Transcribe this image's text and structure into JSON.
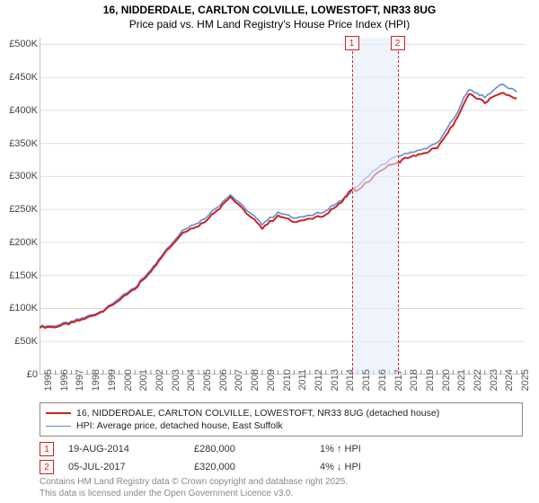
{
  "title_line1": "16, NIDDERDALE, CARLTON COLVILLE, LOWESTOFT, NR33 8UG",
  "title_line2": "Price paid vs. HM Land Registry's House Price Index (HPI)",
  "chart": {
    "type": "line",
    "background_color": "#ffffff",
    "grid_color": "#dddddd",
    "shade_color": "#e5ecfa",
    "axis_color": "#888888",
    "tick_color": "#888888",
    "x_min": 1995,
    "x_max": 2025.5,
    "y_min": 0,
    "y_max": 510000,
    "y_ticks": [
      0,
      50000,
      100000,
      150000,
      200000,
      250000,
      300000,
      350000,
      400000,
      450000,
      500000
    ],
    "y_tick_labels": [
      "£0",
      "£50K",
      "£100K",
      "£150K",
      "£200K",
      "£250K",
      "£300K",
      "£350K",
      "£400K",
      "£450K",
      "£500K"
    ],
    "x_ticks": [
      1995,
      1996,
      1997,
      1998,
      1999,
      2000,
      2001,
      2002,
      2003,
      2004,
      2005,
      2006,
      2007,
      2008,
      2009,
      2010,
      2011,
      2012,
      2013,
      2014,
      2015,
      2016,
      2017,
      2018,
      2019,
      2020,
      2021,
      2022,
      2023,
      2024,
      2025
    ],
    "series": [
      {
        "name": "hpi",
        "color": "#5b8fd6",
        "width": 1.6,
        "x": [
          1995,
          1996,
          1997,
          1998,
          1999,
          2000,
          2001,
          2002,
          2003,
          2004,
          2005,
          2006,
          2007,
          2008,
          2009,
          2010,
          2011,
          2012,
          2013,
          2014,
          2015,
          2016,
          2017,
          2018,
          2019,
          2020,
          2021,
          2022,
          2023,
          2024,
          2025
        ],
        "y": [
          73000,
          74000,
          80000,
          88000,
          97000,
          115000,
          132000,
          160000,
          190000,
          220000,
          230000,
          250000,
          273000,
          250000,
          228000,
          245000,
          238000,
          240000,
          248000,
          265000,
          285000,
          308000,
          325000,
          335000,
          340000,
          350000,
          385000,
          432000,
          420000,
          440000,
          428000
        ]
      },
      {
        "name": "price_paid",
        "color": "#d02020",
        "width": 2.0,
        "x": [
          1995,
          1996,
          1997,
          1998,
          1999,
          2000,
          2001,
          2002,
          2003,
          2004,
          2005,
          2006,
          2007,
          2008,
          2009,
          2010,
          2011,
          2012,
          2013,
          2014,
          2014.63,
          2015,
          2016,
          2017,
          2017.51,
          2018,
          2019,
          2020,
          2021,
          2022,
          2023,
          2024,
          2025
        ],
        "y": [
          72000,
          72000,
          78000,
          86000,
          96000,
          112000,
          130000,
          157000,
          188000,
          216000,
          225000,
          245000,
          270000,
          245000,
          222000,
          240000,
          232000,
          235000,
          242000,
          262000,
          280000,
          278000,
          300000,
          318000,
          320000,
          328000,
          333000,
          344000,
          378000,
          425000,
          412000,
          427000,
          418000
        ]
      }
    ],
    "sale_markers": [
      {
        "n": "1",
        "x": 2014.63,
        "color": "#d02020"
      },
      {
        "n": "2",
        "x": 2017.51,
        "color": "#d02020"
      }
    ],
    "shade_from": 2014.63,
    "shade_to": 2017.51
  },
  "legend": [
    {
      "color": "#d02020",
      "width": 2.4,
      "label": "16, NIDDERDALE, CARLTON COLVILLE, LOWESTOFT, NR33 8UG (detached house)"
    },
    {
      "color": "#5b8fd6",
      "width": 1.6,
      "label": "HPI: Average price, detached house, East Suffolk"
    }
  ],
  "sales_table": [
    {
      "n": "1",
      "color": "#d02020",
      "date": "19-AUG-2014",
      "price": "£280,000",
      "delta": "1% ↑ HPI"
    },
    {
      "n": "2",
      "color": "#d02020",
      "date": "05-JUL-2017",
      "price": "£320,000",
      "delta": "4% ↓ HPI"
    }
  ],
  "attribution_line1": "Contains HM Land Registry data © Crown copyright and database right 2025.",
  "attribution_line2": "This data is licensed under the Open Government Licence v3.0."
}
